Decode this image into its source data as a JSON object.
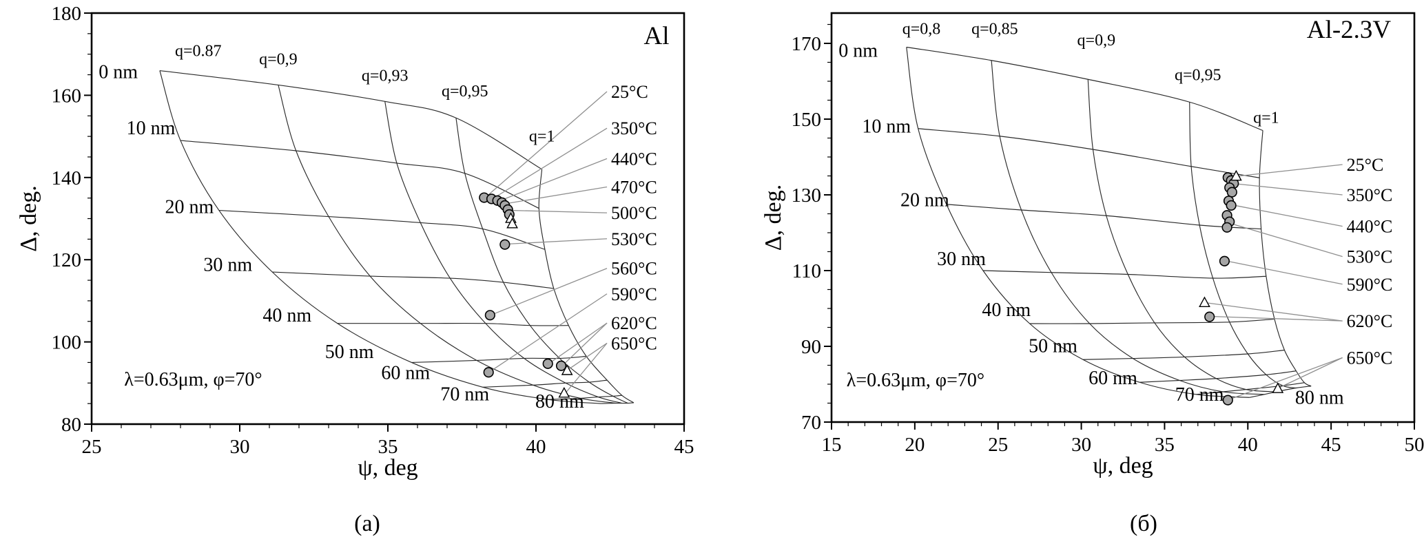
{
  "figure": {
    "background": "#ffffff",
    "mesh_line_color": "#2a2a2a",
    "leader_line_color": "#8f8f8f",
    "marker_circle_fill": "#a6a6a6",
    "marker_triangle_fill": "#ffffff"
  },
  "chart_data": [
    {
      "type": "scatter",
      "title": "Al",
      "caption": "(а)",
      "xlabel": "ψ, deg",
      "ylabel": "Δ, deg.",
      "annotation": "λ=0.63μm, φ=70°",
      "annotation_pos": [
        26.1,
        89.4
      ],
      "title_pos": [
        44.5,
        172.5
      ],
      "xlim": [
        25,
        45
      ],
      "ylim": [
        80,
        180
      ],
      "xticks": [
        25,
        30,
        35,
        40,
        45
      ],
      "yticks": [
        80,
        100,
        120,
        140,
        160,
        180
      ],
      "x_minor_step": 1,
      "y_minor_step": 5,
      "q_labels": [
        {
          "text": "q=0.87",
          "pos": [
            28.6,
            169.5
          ]
        },
        {
          "text": "q=0,9",
          "pos": [
            31.3,
            167.5
          ]
        },
        {
          "text": "q=0,93",
          "pos": [
            34.9,
            163.5
          ]
        },
        {
          "text": "q=0,95",
          "pos": [
            37.6,
            159.7
          ]
        },
        {
          "text": "q=1",
          "pos": [
            40.2,
            148.8
          ]
        }
      ],
      "thickness_labels": [
        {
          "text": "0 nm",
          "pos": [
            25.9,
            164.2
          ]
        },
        {
          "text": "10 nm",
          "pos": [
            27.0,
            150.5
          ]
        },
        {
          "text": "20 nm",
          "pos": [
            28.3,
            131.3
          ]
        },
        {
          "text": "30 nm",
          "pos": [
            29.6,
            117.3
          ]
        },
        {
          "text": "40 nm",
          "pos": [
            31.6,
            105.0
          ]
        },
        {
          "text": "50 nm",
          "pos": [
            33.7,
            96.1
          ]
        },
        {
          "text": "60 nm",
          "pos": [
            35.6,
            91.0
          ]
        },
        {
          "text": "70 nm",
          "pos": [
            37.6,
            85.8
          ]
        },
        {
          "text": "80 nm",
          "pos": [
            40.8,
            84.0
          ]
        }
      ],
      "mesh": {
        "q_values": [
          0.87,
          0.9,
          0.93,
          0.95,
          1
        ],
        "thickness_nm": [
          0,
          10,
          20,
          30,
          40,
          50,
          60,
          70,
          80
        ],
        "q_curves": [
          [
            [
              27.3,
              166
            ],
            [
              28.0,
              149
            ],
            [
              29.3,
              132
            ],
            [
              31.1,
              117
            ],
            [
              33.3,
              104.5
            ],
            [
              35.8,
              95
            ],
            [
              38.2,
              89
            ],
            [
              40.4,
              86
            ],
            [
              42.2,
              85
            ]
          ],
          [
            [
              31.3,
              162.5
            ],
            [
              31.9,
              146.5
            ],
            [
              33.0,
              130.5
            ],
            [
              34.4,
              116
            ],
            [
              36.1,
              104.5
            ],
            [
              38.0,
              95.5
            ],
            [
              39.9,
              89.5
            ],
            [
              41.5,
              86.3
            ],
            [
              42.7,
              85.1
            ]
          ],
          [
            [
              34.9,
              158.5
            ],
            [
              35.3,
              143.5
            ],
            [
              36.1,
              129
            ],
            [
              37.1,
              115.5
            ],
            [
              38.3,
              104.5
            ],
            [
              39.6,
              96
            ],
            [
              41.0,
              90
            ],
            [
              42.1,
              86.6
            ],
            [
              42.9,
              85.1
            ]
          ],
          [
            [
              37.3,
              154.5
            ],
            [
              37.6,
              141
            ],
            [
              38.2,
              127.5
            ],
            [
              38.9,
              114.5
            ],
            [
              39.8,
              104
            ],
            [
              40.8,
              96
            ],
            [
              41.8,
              90.2
            ],
            [
              42.6,
              86.8
            ],
            [
              43.1,
              85.1
            ]
          ],
          [
            [
              40.2,
              142
            ],
            [
              40.1,
              132.5
            ],
            [
              40.3,
              122.5
            ],
            [
              40.6,
              113
            ],
            [
              41.1,
              104
            ],
            [
              41.7,
              96.5
            ],
            [
              42.4,
              90.7
            ],
            [
              42.9,
              87
            ],
            [
              43.3,
              85.2
            ]
          ]
        ]
      },
      "points": {
        "circles": [
          [
            38.25,
            135.1
          ],
          [
            38.5,
            134.8
          ],
          [
            38.7,
            134.4
          ],
          [
            38.85,
            133.9
          ],
          [
            38.95,
            133.2
          ],
          [
            39.05,
            132.2
          ],
          [
            39.1,
            131.0
          ],
          [
            38.95,
            123.7
          ],
          [
            38.45,
            106.5
          ],
          [
            38.4,
            92.6
          ],
          [
            40.4,
            94.7
          ],
          [
            40.85,
            94.2
          ]
        ],
        "triangles": [
          [
            39.15,
            130.0
          ],
          [
            39.2,
            128.7
          ],
          [
            41.05,
            93.0
          ],
          [
            40.95,
            87.5
          ]
        ]
      },
      "temp_labels": {
        "anchor_psi": 42.35,
        "items": [
          {
            "text": "25°C",
            "label_delta": 160.9,
            "targets": [
              [
                38.3,
                135.2
              ]
            ]
          },
          {
            "text": "350°C",
            "label_delta": 152.0,
            "targets": [
              [
                38.55,
                134.9
              ]
            ]
          },
          {
            "text": "440°C",
            "label_delta": 144.6,
            "targets": [
              [
                38.8,
                134.4
              ]
            ]
          },
          {
            "text": "470°C",
            "label_delta": 137.7,
            "targets": [
              [
                38.95,
                133.6
              ]
            ]
          },
          {
            "text": "500°C",
            "label_delta": 131.4,
            "targets": [
              [
                39.15,
                132.0
              ]
            ]
          },
          {
            "text": "530°C",
            "label_delta": 125.1,
            "targets": [
              [
                39.0,
                123.8
              ]
            ]
          },
          {
            "text": "560°C",
            "label_delta": 117.9,
            "targets": [
              [
                38.5,
                106.6
              ]
            ]
          },
          {
            "text": "590°C",
            "label_delta": 111.7,
            "targets": [
              [
                38.45,
                92.8
              ]
            ]
          },
          {
            "text": "620°C",
            "label_delta": 104.6,
            "targets": [
              [
                40.45,
                94.8
              ],
              [
                40.9,
                94.3
              ]
            ]
          },
          {
            "text": "650°C",
            "label_delta": 99.7,
            "targets": [
              [
                41.05,
                93.1
              ],
              [
                41.0,
                87.6
              ]
            ]
          }
        ]
      }
    },
    {
      "type": "scatter",
      "title": "Al-2.3V",
      "caption": "(б)",
      "xlabel": "ψ, deg",
      "ylabel": "Δ, deg.",
      "annotation": "λ=0.63μm, φ=70°",
      "annotation_pos": [
        15.9,
        79.5
      ],
      "title_pos": [
        48.6,
        171.5
      ],
      "xlim": [
        15,
        50
      ],
      "ylim": [
        70,
        178
      ],
      "xticks": [
        15,
        20,
        25,
        30,
        35,
        40,
        45,
        50
      ],
      "yticks": [
        70,
        90,
        110,
        130,
        150,
        170
      ],
      "x_minor_step": 1,
      "y_minor_step": 5,
      "q_labels": [
        {
          "text": "q=0,8",
          "pos": [
            20.4,
            172.5
          ]
        },
        {
          "text": "q=0,85",
          "pos": [
            24.8,
            172.5
          ]
        },
        {
          "text": "q=0,9",
          "pos": [
            30.9,
            169.5
          ]
        },
        {
          "text": "q=0,95",
          "pos": [
            37.0,
            160.3
          ]
        },
        {
          "text": "q=1",
          "pos": [
            41.1,
            149.0
          ]
        }
      ],
      "thickness_labels": [
        {
          "text": "0 nm",
          "pos": [
            16.6,
            166.5
          ]
        },
        {
          "text": "10 nm",
          "pos": [
            18.3,
            146.5
          ]
        },
        {
          "text": "20 nm",
          "pos": [
            20.6,
            127.0
          ]
        },
        {
          "text": "30 nm",
          "pos": [
            22.8,
            111.5
          ]
        },
        {
          "text": "40 nm",
          "pos": [
            25.5,
            98.0
          ]
        },
        {
          "text": "50 nm",
          "pos": [
            28.3,
            88.5
          ]
        },
        {
          "text": "60 nm",
          "pos": [
            31.9,
            80.0
          ]
        },
        {
          "text": "70 nm",
          "pos": [
            37.1,
            75.6
          ]
        },
        {
          "text": "80 nm",
          "pos": [
            44.3,
            74.8
          ]
        }
      ],
      "mesh": {
        "q_values": [
          0.8,
          0.85,
          0.9,
          0.95,
          1
        ],
        "thickness_nm": [
          0,
          10,
          20,
          30,
          40,
          50,
          60,
          70,
          80
        ],
        "q_curves": [
          [
            [
              19.5,
              169
            ],
            [
              20.2,
              147.5
            ],
            [
              21.9,
              127.5
            ],
            [
              24.1,
              110
            ],
            [
              26.9,
              96
            ],
            [
              30.1,
              86.5
            ],
            [
              33.5,
              80.5
            ],
            [
              36.9,
              77.3
            ],
            [
              40.1,
              76.5
            ]
          ],
          [
            [
              24.6,
              165.5
            ],
            [
              25.1,
              145.5
            ],
            [
              26.4,
              126
            ],
            [
              28.2,
              109.5
            ],
            [
              30.5,
              96
            ],
            [
              33.1,
              86.8
            ],
            [
              35.9,
              81
            ],
            [
              38.5,
              78
            ],
            [
              41.0,
              77.3
            ]
          ],
          [
            [
              30.4,
              160.5
            ],
            [
              30.7,
              142
            ],
            [
              31.5,
              124.5
            ],
            [
              32.8,
              109
            ],
            [
              34.4,
              96.2
            ],
            [
              36.2,
              87.2
            ],
            [
              38.1,
              81.5
            ],
            [
              39.9,
              78.6
            ],
            [
              41.7,
              78
            ]
          ],
          [
            [
              36.5,
              154.5
            ],
            [
              36.6,
              137.5
            ],
            [
              37.1,
              122
            ],
            [
              37.9,
              108
            ],
            [
              38.9,
              96.4
            ],
            [
              40.0,
              88
            ],
            [
              41.1,
              82.5
            ],
            [
              42.1,
              79.6
            ],
            [
              42.9,
              79
            ]
          ],
          [
            [
              40.9,
              147
            ],
            [
              40.7,
              134.5
            ],
            [
              40.8,
              121
            ],
            [
              41.1,
              108.5
            ],
            [
              41.6,
              97.2
            ],
            [
              42.2,
              89
            ],
            [
              42.9,
              83.5
            ],
            [
              43.4,
              80.4
            ],
            [
              43.8,
              79.5
            ]
          ]
        ]
      },
      "points": {
        "circles": [
          [
            38.8,
            134.6
          ],
          [
            39.0,
            133.8
          ],
          [
            39.15,
            133.0
          ],
          [
            38.9,
            131.9
          ],
          [
            39.05,
            130.7
          ],
          [
            38.85,
            128.4
          ],
          [
            39.0,
            127.2
          ],
          [
            38.75,
            124.6
          ],
          [
            38.9,
            122.9
          ],
          [
            38.75,
            121.4
          ],
          [
            38.6,
            112.5
          ],
          [
            37.7,
            97.8
          ],
          [
            38.8,
            75.8
          ]
        ],
        "triangles": [
          [
            39.3,
            134.9
          ],
          [
            37.4,
            101.5
          ],
          [
            41.8,
            78.8
          ]
        ]
      },
      "temp_labels": {
        "anchor_psi": 45.6,
        "items": [
          {
            "text": "25°C",
            "label_delta": 138.0,
            "targets": [
              [
                38.9,
                134.7
              ]
            ]
          },
          {
            "text": "350°C",
            "label_delta": 130.0,
            "targets": [
              [
                39.1,
                133.0
              ]
            ]
          },
          {
            "text": "440°C",
            "label_delta": 121.7,
            "targets": [
              [
                39.0,
                127.4
              ]
            ]
          },
          {
            "text": "530°C",
            "label_delta": 113.7,
            "targets": [
              [
                38.85,
                122.6
              ]
            ]
          },
          {
            "text": "590°C",
            "label_delta": 106.4,
            "targets": [
              [
                38.65,
                112.6
              ]
            ]
          },
          {
            "text": "620°C",
            "label_delta": 96.7,
            "targets": [
              [
                37.5,
                101.5
              ],
              [
                37.8,
                97.9
              ]
            ]
          },
          {
            "text": "650°C",
            "label_delta": 87.0,
            "targets": [
              [
                41.85,
                79.0
              ],
              [
                38.9,
                76.0
              ]
            ]
          }
        ]
      }
    }
  ]
}
